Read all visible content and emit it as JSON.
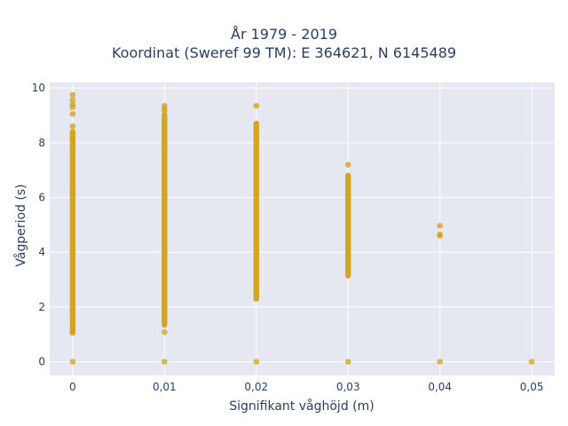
{
  "chart_data": {
    "type": "scatter",
    "title_lines": [
      "År 1979 - 2019",
      "Koordinat (Sweref 99 TM): E 364621, N 6145489"
    ],
    "xlabel": "Signifikant våghöjd (m)",
    "ylabel": "Vågperiod (s)",
    "xlim": [
      -0.0025,
      0.0525
    ],
    "ylim": [
      -0.5,
      10.2
    ],
    "x_ticks": [
      0,
      0.01,
      0.02,
      0.03,
      0.04,
      0.05
    ],
    "x_tick_labels": [
      "0",
      "0,01",
      "0,02",
      "0,03",
      "0,04",
      "0,05"
    ],
    "y_ticks": [
      0,
      2,
      4,
      6,
      8,
      10
    ],
    "y_tick_labels": [
      "0",
      "2",
      "4",
      "6",
      "8",
      "10"
    ],
    "grid": true,
    "marker_color": "#d4a017",
    "plot_bg": "#e5e8f1",
    "series": [
      {
        "x": 0,
        "band": [
          1.1,
          8.4
        ],
        "points": [
          0,
          1.05,
          8.6,
          9.05,
          9.3,
          9.4,
          9.55,
          9.75
        ]
      },
      {
        "x": 0.01,
        "band": [
          1.35,
          9.0
        ],
        "points": [
          0,
          1.08,
          9.15,
          9.25,
          9.35
        ]
      },
      {
        "x": 0.02,
        "band": [
          2.3,
          8.7
        ],
        "points": [
          0,
          9.35
        ]
      },
      {
        "x": 0.03,
        "band": [
          3.15,
          6.8
        ],
        "points": [
          0,
          7.2
        ]
      },
      {
        "x": 0.04,
        "band": null,
        "points": [
          0,
          4.6,
          4.65,
          4.97
        ]
      },
      {
        "x": 0.05,
        "band": null,
        "points": [
          0
        ]
      }
    ]
  }
}
